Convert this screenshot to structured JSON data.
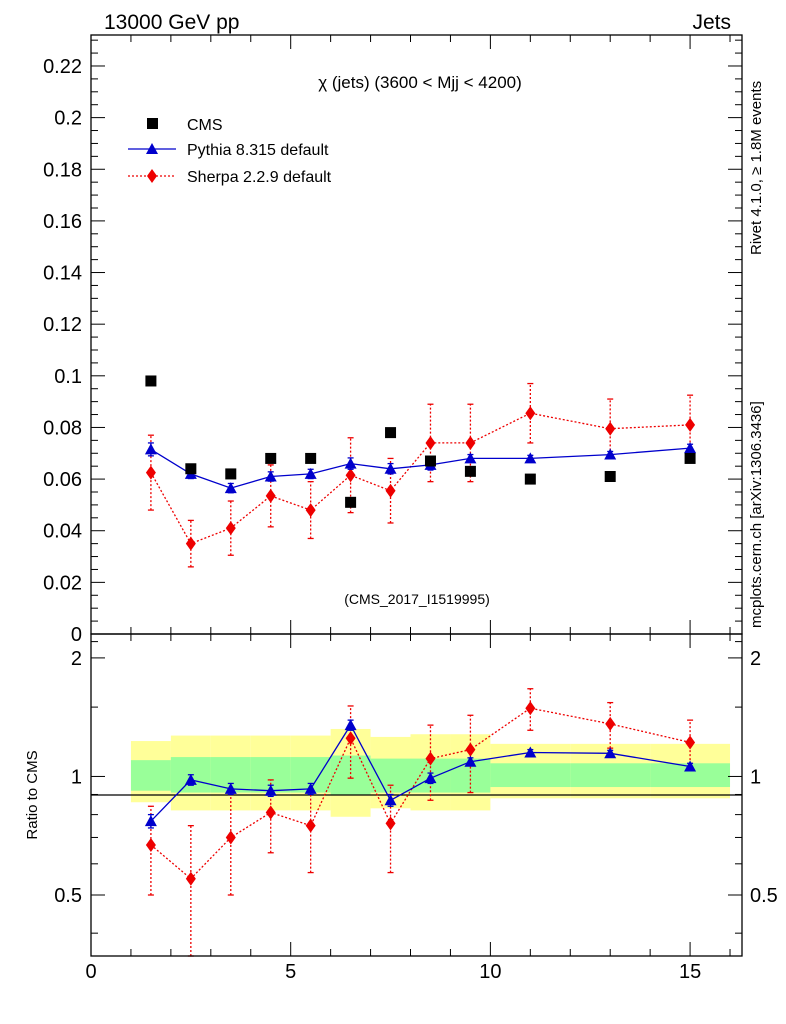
{
  "header": {
    "left": "13000 GeV pp",
    "right": "Jets",
    "side_top": "Rivet 4.1.0, ≥ 1.8M events",
    "side_bottom": "mcplots.cern.ch [arXiv:1306.3436]"
  },
  "colors": {
    "data": "#000000",
    "pythia": "#0000cc",
    "sherpa": "#ee0000",
    "band_inner": "#99ff99",
    "band_outer": "#ffff99",
    "watermark": "#888888"
  },
  "chart_data": [
    {
      "type": "scatter",
      "title": "χ (jets) (3600 < Mjj < 4200)",
      "watermark": "(CMS_2017_I1519995)",
      "xlim": [
        0,
        16.3
      ],
      "ylim": [
        0,
        0.232
      ],
      "yticks": [
        0,
        0.02,
        0.04,
        0.06,
        0.08,
        0.1,
        0.12,
        0.14,
        0.16,
        0.18,
        0.2,
        0.22
      ],
      "ytick_labels": [
        "0",
        "0.02",
        "0.04",
        "0.06",
        "0.08",
        "0.1",
        "0.12",
        "0.14",
        "0.16",
        "0.18",
        "0.2",
        "0.22"
      ],
      "legend": [
        "CMS",
        "Pythia 8.315 default",
        "Sherpa 2.2.9 default"
      ],
      "series": [
        {
          "name": "CMS",
          "x": [
            1.5,
            2.5,
            3.5,
            4.5,
            5.5,
            6.5,
            7.5,
            8.5,
            9.5,
            11,
            13,
            15
          ],
          "y": [
            0.098,
            0.064,
            0.062,
            0.068,
            0.068,
            0.051,
            0.078,
            0.067,
            0.063,
            0.06,
            0.061,
            0.068
          ]
        },
        {
          "name": "Pythia 8.315 default",
          "x": [
            1.5,
            2.5,
            3.5,
            4.5,
            5.5,
            6.5,
            7.5,
            8.5,
            9.5,
            11,
            13,
            15
          ],
          "y": [
            0.0715,
            0.062,
            0.0565,
            0.061,
            0.062,
            0.066,
            0.064,
            0.0655,
            0.068,
            0.068,
            0.0695,
            0.072
          ],
          "err": [
            0.0025,
            0.0018,
            0.0018,
            0.0018,
            0.0018,
            0.0022,
            0.002,
            0.002,
            0.0015,
            0.0012,
            0.0012,
            0.0015
          ]
        },
        {
          "name": "Sherpa 2.2.9 default",
          "x": [
            1.5,
            2.5,
            3.5,
            4.5,
            5.5,
            6.5,
            7.5,
            8.5,
            9.5,
            11,
            13,
            15
          ],
          "y": [
            0.0625,
            0.035,
            0.041,
            0.0535,
            0.048,
            0.0615,
            0.0555,
            0.074,
            0.074,
            0.0855,
            0.0795,
            0.081
          ],
          "err": [
            0.0145,
            0.009,
            0.0105,
            0.012,
            0.011,
            0.0145,
            0.0125,
            0.015,
            0.015,
            0.0115,
            0.0115,
            0.0115
          ]
        }
      ]
    },
    {
      "type": "scatter",
      "ylabel": "Ratio to CMS",
      "xlim": [
        0,
        16.3
      ],
      "ylim": [
        0.35,
        2.3
      ],
      "ytick_labels": [
        "0.5",
        "1",
        "2"
      ],
      "yticks": [
        0.5,
        1,
        2
      ],
      "xtick_labels": [
        "0",
        "5",
        "10",
        "15"
      ],
      "xticks": [
        0,
        5,
        10,
        15
      ],
      "bands": [
        {
          "x0": 1,
          "x1": 2,
          "inner": [
            0.92,
            1.1
          ],
          "outer": [
            0.86,
            1.23
          ]
        },
        {
          "x0": 2,
          "x1": 3,
          "inner": [
            0.91,
            1.12
          ],
          "outer": [
            0.82,
            1.27
          ]
        },
        {
          "x0": 3,
          "x1": 4,
          "inner": [
            0.91,
            1.12
          ],
          "outer": [
            0.82,
            1.27
          ]
        },
        {
          "x0": 4,
          "x1": 5,
          "inner": [
            0.91,
            1.12
          ],
          "outer": [
            0.82,
            1.27
          ]
        },
        {
          "x0": 5,
          "x1": 6,
          "inner": [
            0.91,
            1.12
          ],
          "outer": [
            0.82,
            1.27
          ]
        },
        {
          "x0": 6,
          "x1": 7,
          "inner": [
            0.9,
            1.13
          ],
          "outer": [
            0.79,
            1.32
          ]
        },
        {
          "x0": 7,
          "x1": 8,
          "inner": [
            0.91,
            1.11
          ],
          "outer": [
            0.83,
            1.26
          ]
        },
        {
          "x0": 8,
          "x1": 9,
          "inner": [
            0.91,
            1.11
          ],
          "outer": [
            0.82,
            1.28
          ]
        },
        {
          "x0": 9,
          "x1": 10,
          "inner": [
            0.91,
            1.11
          ],
          "outer": [
            0.82,
            1.28
          ]
        },
        {
          "x0": 10,
          "x1": 12,
          "inner": [
            0.94,
            1.08
          ],
          "outer": [
            0.88,
            1.21
          ]
        },
        {
          "x0": 12,
          "x1": 14,
          "inner": [
            0.94,
            1.08
          ],
          "outer": [
            0.88,
            1.21
          ]
        },
        {
          "x0": 14,
          "x1": 16,
          "inner": [
            0.94,
            1.08
          ],
          "outer": [
            0.88,
            1.21
          ]
        }
      ],
      "series": [
        {
          "name": "Pythia 8.315 default",
          "x": [
            1.5,
            2.5,
            3.5,
            4.5,
            5.5,
            6.5,
            7.5,
            8.5,
            9.5,
            11,
            13,
            15
          ],
          "y": [
            0.77,
            0.98,
            0.93,
            0.92,
            0.93,
            1.35,
            0.87,
            0.99,
            1.09,
            1.15,
            1.145,
            1.06
          ],
          "err": [
            0.03,
            0.03,
            0.03,
            0.03,
            0.03,
            0.04,
            0.03,
            0.03,
            0.025,
            0.02,
            0.02,
            0.02
          ]
        },
        {
          "name": "Sherpa 2.2.9 default",
          "x": [
            1.5,
            2.5,
            3.5,
            4.5,
            5.5,
            6.5,
            7.5,
            8.5,
            9.5,
            11,
            13,
            15
          ],
          "y": [
            0.67,
            0.55,
            0.7,
            0.81,
            0.75,
            1.25,
            0.76,
            1.11,
            1.17,
            1.49,
            1.36,
            1.22
          ],
          "err": [
            0.17,
            0.2,
            0.2,
            0.17,
            0.18,
            0.26,
            0.19,
            0.24,
            0.26,
            0.18,
            0.18,
            0.17
          ]
        }
      ]
    }
  ]
}
